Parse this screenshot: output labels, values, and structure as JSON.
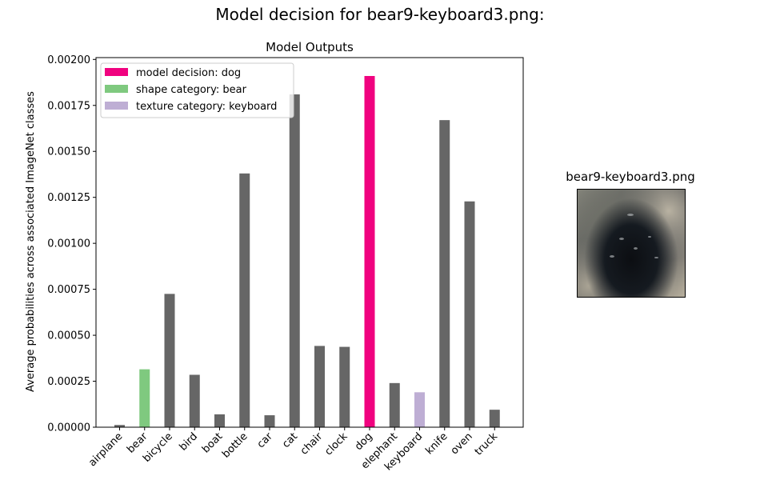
{
  "figure": {
    "suptitle": "Model decision for bear9-keyboard3.png:",
    "image_title": "bear9-keyboard3.png"
  },
  "chart_data": {
    "type": "bar",
    "title": "Model Outputs",
    "xlabel": "",
    "ylabel": "Average probabilities across associated ImageNet classes",
    "ylim": [
      0,
      0.00201
    ],
    "yticks": [
      "0.00000",
      "0.00025",
      "0.00050",
      "0.00075",
      "0.00100",
      "0.00125",
      "0.00150",
      "0.00175",
      "0.00200"
    ],
    "categories": [
      "airplane",
      "bear",
      "bicycle",
      "bird",
      "boat",
      "bottle",
      "car",
      "cat",
      "chair",
      "clock",
      "dog",
      "elephant",
      "keyboard",
      "knife",
      "oven",
      "truck"
    ],
    "values": [
      1.2e-05,
      0.000315,
      0.000725,
      0.000285,
      7e-05,
      0.00138,
      6.5e-05,
      0.00181,
      0.000442,
      0.000437,
      0.00191,
      0.00024,
      0.00019,
      0.00167,
      0.001228,
      9.5e-05
    ],
    "colors": [
      "#666666",
      "#7fc97f",
      "#666666",
      "#666666",
      "#666666",
      "#666666",
      "#666666",
      "#666666",
      "#666666",
      "#666666",
      "#f0027f",
      "#666666",
      "#beaed4",
      "#666666",
      "#666666",
      "#666666"
    ],
    "legend": {
      "placement": "upper-left",
      "entries": [
        {
          "label": "model decision: dog",
          "color": "#f0027f"
        },
        {
          "label": "shape category: bear",
          "color": "#7fc97f"
        },
        {
          "label": "texture category: keyboard",
          "color": "#beaed4"
        }
      ]
    },
    "grid": false
  }
}
